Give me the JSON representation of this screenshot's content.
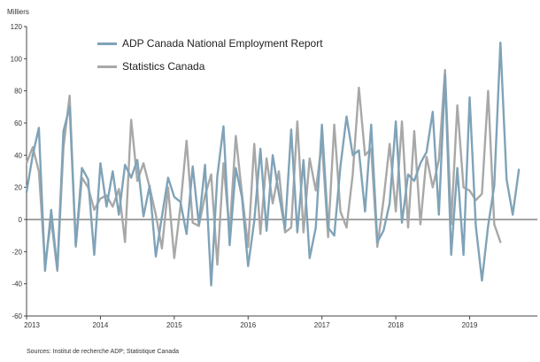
{
  "chart_data": {
    "type": "line",
    "unit_label": "Milliers",
    "source": "Sources: Institut de recherche ADP; Statistique Canada",
    "ylim": [
      -60,
      120
    ],
    "yticks": [
      -60,
      -40,
      -20,
      0,
      20,
      40,
      60,
      80,
      100,
      120
    ],
    "year_labels": [
      "2013",
      "2014",
      "2015",
      "2016",
      "2017",
      "2018",
      "2019"
    ],
    "x_range": [
      "2013-01",
      "2019-12"
    ],
    "grid": false,
    "legend_position": "top-left",
    "series": [
      {
        "name": "ADP Canada National Employment Report",
        "color": "#7fa3b8",
        "x": [
          "2013-01",
          "2013-02",
          "2013-03",
          "2013-04",
          "2013-05",
          "2013-06",
          "2013-07",
          "2013-08",
          "2013-09",
          "2013-10",
          "2013-11",
          "2013-12",
          "2014-01",
          "2014-02",
          "2014-03",
          "2014-04",
          "2014-05",
          "2014-06",
          "2014-07",
          "2014-08",
          "2014-09",
          "2014-10",
          "2014-11",
          "2014-12",
          "2015-01",
          "2015-02",
          "2015-03",
          "2015-04",
          "2015-05",
          "2015-06",
          "2015-07",
          "2015-08",
          "2015-09",
          "2015-10",
          "2015-11",
          "2015-12",
          "2016-01",
          "2016-02",
          "2016-03",
          "2016-04",
          "2016-05",
          "2016-06",
          "2016-07",
          "2016-08",
          "2016-09",
          "2016-10",
          "2016-11",
          "2016-12",
          "2017-01",
          "2017-02",
          "2017-03",
          "2017-04",
          "2017-05",
          "2017-06",
          "2017-07",
          "2017-08",
          "2017-09",
          "2017-10",
          "2017-11",
          "2017-12",
          "2018-01",
          "2018-02",
          "2018-03",
          "2018-04",
          "2018-05",
          "2018-06",
          "2018-07",
          "2018-08",
          "2018-09",
          "2018-10",
          "2018-11",
          "2018-12",
          "2019-01",
          "2019-02",
          "2019-03",
          "2019-04",
          "2019-05",
          "2019-06",
          "2019-07",
          "2019-08",
          "2019-09",
          "2019-10",
          "2019-11",
          "2019-12"
        ],
        "values": [
          17,
          40,
          57,
          -32,
          6,
          -31,
          55,
          70,
          -16,
          32,
          25,
          -22,
          35,
          8,
          30,
          3,
          34,
          26,
          37,
          2,
          21,
          -23,
          2,
          26,
          14,
          11,
          -9,
          33,
          -3,
          34,
          -41,
          27,
          58,
          -16,
          32,
          14,
          -29,
          -1,
          44,
          -7,
          40,
          16,
          -6,
          56,
          -8,
          37,
          -24,
          -5,
          59,
          -5,
          -10,
          33,
          64,
          40,
          43,
          5,
          59,
          -14,
          -7,
          10,
          61,
          -2,
          28,
          24,
          35,
          42,
          67,
          3,
          90,
          -22,
          32,
          -22,
          76,
          -4,
          -38,
          -4,
          21,
          110,
          25,
          3,
          31,
          null,
          null,
          null
        ]
      },
      {
        "name": "Statistics Canada",
        "color": "#a8a8a8",
        "x": [
          "2013-01",
          "2013-02",
          "2013-03",
          "2013-04",
          "2013-05",
          "2013-06",
          "2013-07",
          "2013-08",
          "2013-09",
          "2013-10",
          "2013-11",
          "2013-12",
          "2014-01",
          "2014-02",
          "2014-03",
          "2014-04",
          "2014-05",
          "2014-06",
          "2014-07",
          "2014-08",
          "2014-09",
          "2014-10",
          "2014-11",
          "2014-12",
          "2015-01",
          "2015-02",
          "2015-03",
          "2015-04",
          "2015-05",
          "2015-06",
          "2015-07",
          "2015-08",
          "2015-09",
          "2015-10",
          "2015-11",
          "2015-12",
          "2016-01",
          "2016-02",
          "2016-03",
          "2016-04",
          "2016-05",
          "2016-06",
          "2016-07",
          "2016-08",
          "2016-09",
          "2016-10",
          "2016-11",
          "2016-12",
          "2017-01",
          "2017-02",
          "2017-03",
          "2017-04",
          "2017-05",
          "2017-06",
          "2017-07",
          "2017-08",
          "2017-09",
          "2017-10",
          "2017-11",
          "2017-12",
          "2018-01",
          "2018-02",
          "2018-03",
          "2018-04",
          "2018-05",
          "2018-06",
          "2018-07",
          "2018-08",
          "2018-09",
          "2018-10",
          "2018-11",
          "2018-12",
          "2019-01",
          "2019-02",
          "2019-03",
          "2019-04",
          "2019-05",
          "2019-06",
          "2019-07",
          "2019-08",
          "2019-09",
          "2019-10",
          "2019-11",
          "2019-12"
        ],
        "values": [
          35,
          45,
          30,
          -28,
          0,
          -32,
          45,
          77,
          -17,
          26,
          20,
          6,
          13,
          15,
          8,
          19,
          -14,
          62,
          24,
          35,
          20,
          3,
          -18,
          20,
          -24,
          8,
          49,
          -2,
          -4,
          15,
          28,
          -28,
          35,
          -8,
          52,
          16,
          -17,
          47,
          -9,
          38,
          10,
          30,
          -8,
          -5,
          61,
          -8,
          38,
          18,
          48,
          -11,
          59,
          5,
          -5,
          28,
          82,
          40,
          44,
          -17,
          12,
          47,
          5,
          61,
          -5,
          55,
          -3,
          39,
          20,
          37,
          93,
          -3,
          71,
          20,
          18,
          12,
          16,
          80,
          -3,
          -14,
          null,
          null,
          null,
          null,
          null,
          null
        ]
      }
    ]
  }
}
